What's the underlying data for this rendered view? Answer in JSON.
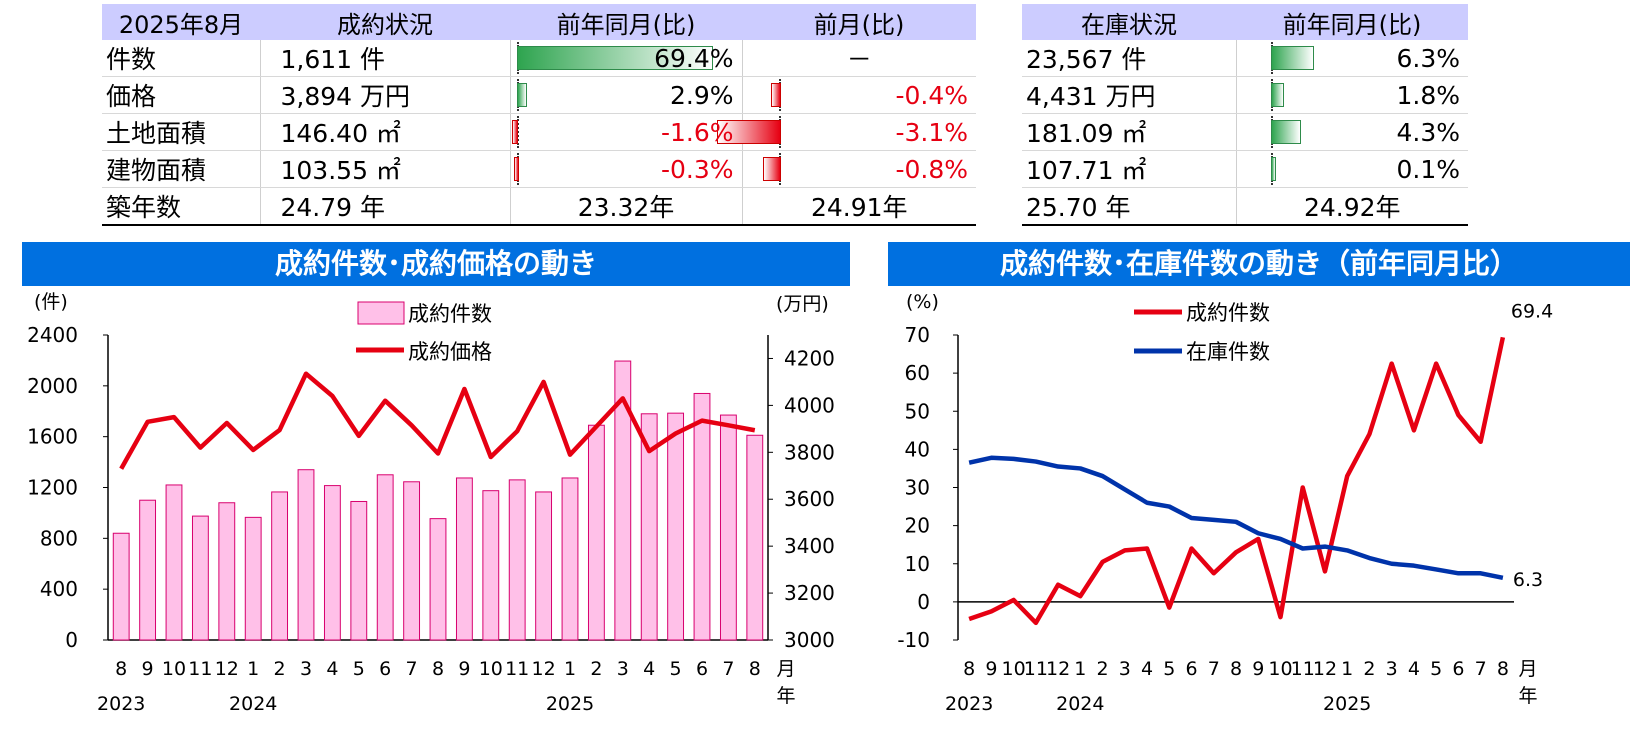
{
  "sales_table": {
    "headers": [
      "2025年8月",
      "成約状況",
      "前年同月(比)",
      "前月(比)"
    ],
    "rows": [
      {
        "label": "件数",
        "value": "1,611 件",
        "yoy": "69.4%",
        "yoy_pct": 69.4,
        "mom": "－",
        "mom_pct": null
      },
      {
        "label": "価格",
        "value": "3,894 万円",
        "yoy": "2.9%",
        "yoy_pct": 2.9,
        "mom": "-0.4%",
        "mom_pct": -0.4
      },
      {
        "label": "土地面積",
        "value": "146.40 ㎡",
        "yoy": "-1.6%",
        "yoy_pct": -1.6,
        "mom": "-3.1%",
        "mom_pct": -3.1
      },
      {
        "label": "建物面積",
        "value": "103.55 ㎡",
        "yoy": "-0.3%",
        "yoy_pct": -0.3,
        "mom": "-0.8%",
        "mom_pct": -0.8
      },
      {
        "label": "築年数",
        "value": "24.79 年",
        "yoy": "23.32年",
        "yoy_pct": null,
        "mom": "24.91年",
        "mom_pct": null
      }
    ]
  },
  "inventory_table": {
    "headers": [
      "在庫状況",
      "前年同月(比)"
    ],
    "rows": [
      {
        "value": "23,567 件",
        "yoy": "6.3%",
        "yoy_pct": 6.3
      },
      {
        "value": "4,431 万円",
        "yoy": "1.8%",
        "yoy_pct": 1.8
      },
      {
        "value": "181.09 ㎡",
        "yoy": "4.3%",
        "yoy_pct": 4.3
      },
      {
        "value": "107.71 ㎡",
        "yoy": "0.1%",
        "yoy_pct": 0.1
      },
      {
        "value": "25.70 年",
        "yoy": "24.92年",
        "yoy_pct": null
      }
    ]
  },
  "colors": {
    "header_bg": "#ccccff",
    "title_bg": "#0070e0",
    "bar_fill": "#ffc0e8",
    "bar_stroke": "#d8006e",
    "red_line": "#e60012",
    "blue_line": "#0033aa",
    "green_bar": "#2ea44f",
    "negative_text": "#e60012"
  },
  "chart_data": [
    {
      "type": "bar",
      "title": "成約件数･成約価格の動き",
      "ylabel_left": "(件)",
      "ylabel_right": "(万円)",
      "ylim_left": [
        0,
        2400
      ],
      "yticks_left": [
        0,
        400,
        800,
        1200,
        1600,
        2000,
        2400
      ],
      "ylim_right": [
        3000,
        4300
      ],
      "yticks_right": [
        3000,
        3200,
        3400,
        3600,
        3800,
        4000,
        4200
      ],
      "month_labels": [
        "8",
        "9",
        "10",
        "11",
        "12",
        "1",
        "2",
        "3",
        "4",
        "5",
        "6",
        "7",
        "8",
        "9",
        "10",
        "11",
        "12",
        "1",
        "2",
        "3",
        "4",
        "5",
        "6",
        "7",
        "8"
      ],
      "year_labels": [
        {
          "index": 0,
          "label": "2023"
        },
        {
          "index": 5,
          "label": "2024"
        },
        {
          "index": 17,
          "label": "2025"
        }
      ],
      "x_unit_month": "月",
      "x_unit_year": "年",
      "series": [
        {
          "name": "成約件数",
          "kind": "bar",
          "axis": "left",
          "values": [
            840,
            1100,
            1220,
            975,
            1080,
            965,
            1165,
            1340,
            1215,
            1090,
            1300,
            1245,
            955,
            1275,
            1175,
            1260,
            1165,
            1275,
            1690,
            2195,
            1780,
            1785,
            1940,
            1770,
            1611
          ]
        },
        {
          "name": "成約価格",
          "kind": "line",
          "axis": "right",
          "values": [
            3730,
            3930,
            3950,
            3820,
            3925,
            3810,
            3895,
            4135,
            4040,
            3870,
            4020,
            3915,
            3795,
            4070,
            3780,
            3890,
            4100,
            3790,
            3910,
            4030,
            3805,
            3880,
            3935,
            3915,
            3894
          ]
        }
      ]
    },
    {
      "type": "line",
      "title": "成約件数･在庫件数の動き（前年同月比）",
      "ylabel": "(%)",
      "ylim": [
        -10,
        70
      ],
      "yticks": [
        -10,
        0,
        10,
        20,
        30,
        40,
        50,
        60,
        70
      ],
      "month_labels": [
        "8",
        "9",
        "10",
        "11",
        "12",
        "1",
        "2",
        "3",
        "4",
        "5",
        "6",
        "7",
        "8",
        "9",
        "10",
        "11",
        "12",
        "1",
        "2",
        "3",
        "4",
        "5",
        "6",
        "7",
        "8"
      ],
      "year_labels": [
        {
          "index": 0,
          "label": "2023"
        },
        {
          "index": 5,
          "label": "2024"
        },
        {
          "index": 17,
          "label": "2025"
        }
      ],
      "x_unit_month": "月",
      "x_unit_year": "年",
      "end_labels": [
        "69.4",
        "6.3"
      ],
      "series": [
        {
          "name": "成約件数",
          "color": "#e60012",
          "values": [
            -4.5,
            -2.5,
            0.5,
            -5.5,
            4.5,
            1.5,
            10.5,
            13.5,
            14,
            -1.5,
            14,
            7.5,
            13,
            16.5,
            -4,
            30,
            8,
            33,
            44,
            62.5,
            45,
            62.5,
            49,
            42,
            69.4
          ]
        },
        {
          "name": "在庫件数",
          "color": "#0033aa",
          "values": [
            36.5,
            37.8,
            37.5,
            36.8,
            35.5,
            35,
            33,
            29.5,
            26,
            25,
            22,
            21.5,
            21,
            18,
            16.5,
            14,
            14.5,
            13.5,
            11.5,
            10,
            9.5,
            8.5,
            7.5,
            7.5,
            6.3
          ]
        }
      ]
    }
  ]
}
